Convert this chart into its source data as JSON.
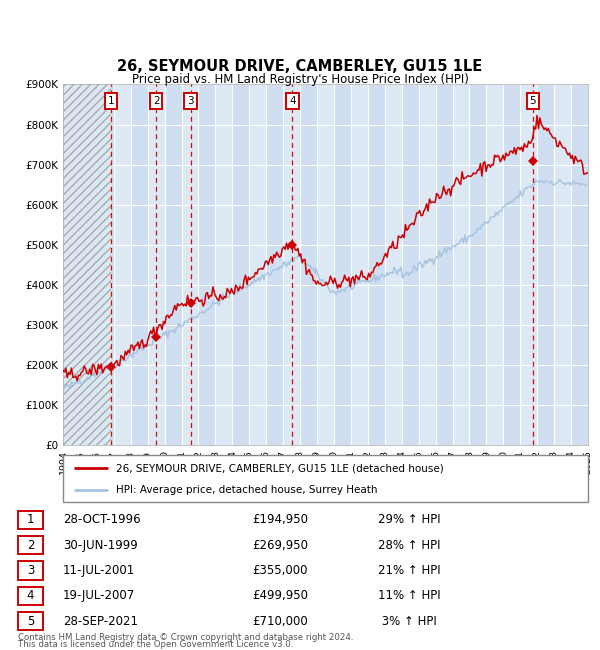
{
  "title": "26, SEYMOUR DRIVE, CAMBERLEY, GU15 1LE",
  "subtitle": "Price paid vs. HM Land Registry's House Price Index (HPI)",
  "x_start_year": 1994,
  "x_end_year": 2025,
  "y_min": 0,
  "y_max": 900000,
  "y_ticks": [
    0,
    100000,
    200000,
    300000,
    400000,
    500000,
    600000,
    700000,
    800000,
    900000
  ],
  "y_tick_labels": [
    "£0",
    "£100K",
    "£200K",
    "£300K",
    "£400K",
    "£500K",
    "£600K",
    "£700K",
    "£800K",
    "£900K"
  ],
  "background_color": "#ffffff",
  "plot_bg_color": "#dce9f5",
  "grid_color": "#ffffff",
  "hpi_line_color": "#a8c4e0",
  "price_line_color": "#cc0000",
  "sale_marker_color": "#cc0000",
  "dashed_line_color": "#cc0000",
  "sales": [
    {
      "year": 1996.83,
      "price": 194950,
      "label": "1"
    },
    {
      "year": 1999.5,
      "price": 269950,
      "label": "2"
    },
    {
      "year": 2001.53,
      "price": 355000,
      "label": "3"
    },
    {
      "year": 2007.55,
      "price": 499950,
      "label": "4"
    },
    {
      "year": 2021.75,
      "price": 710000,
      "label": "5"
    }
  ],
  "legend_entries": [
    {
      "color": "#cc0000",
      "label": "26, SEYMOUR DRIVE, CAMBERLEY, GU15 1LE (detached house)"
    },
    {
      "color": "#a8c4e0",
      "label": "HPI: Average price, detached house, Surrey Heath"
    }
  ],
  "table_rows": [
    {
      "num": "1",
      "date": "28-OCT-1996",
      "price": "£194,950",
      "hpi": "29% ↑ HPI"
    },
    {
      "num": "2",
      "date": "30-JUN-1999",
      "price": "£269,950",
      "hpi": "28% ↑ HPI"
    },
    {
      "num": "3",
      "date": "11-JUL-2001",
      "price": "£355,000",
      "hpi": "21% ↑ HPI"
    },
    {
      "num": "4",
      "date": "19-JUL-2007",
      "price": "£499,950",
      "hpi": "11% ↑ HPI"
    },
    {
      "num": "5",
      "date": "28-SEP-2021",
      "price": "£710,000",
      "hpi": " 3% ↑ HPI"
    }
  ],
  "footnote1": "Contains HM Land Registry data © Crown copyright and database right 2024.",
  "footnote2": "This data is licensed under the Open Government Licence v3.0."
}
